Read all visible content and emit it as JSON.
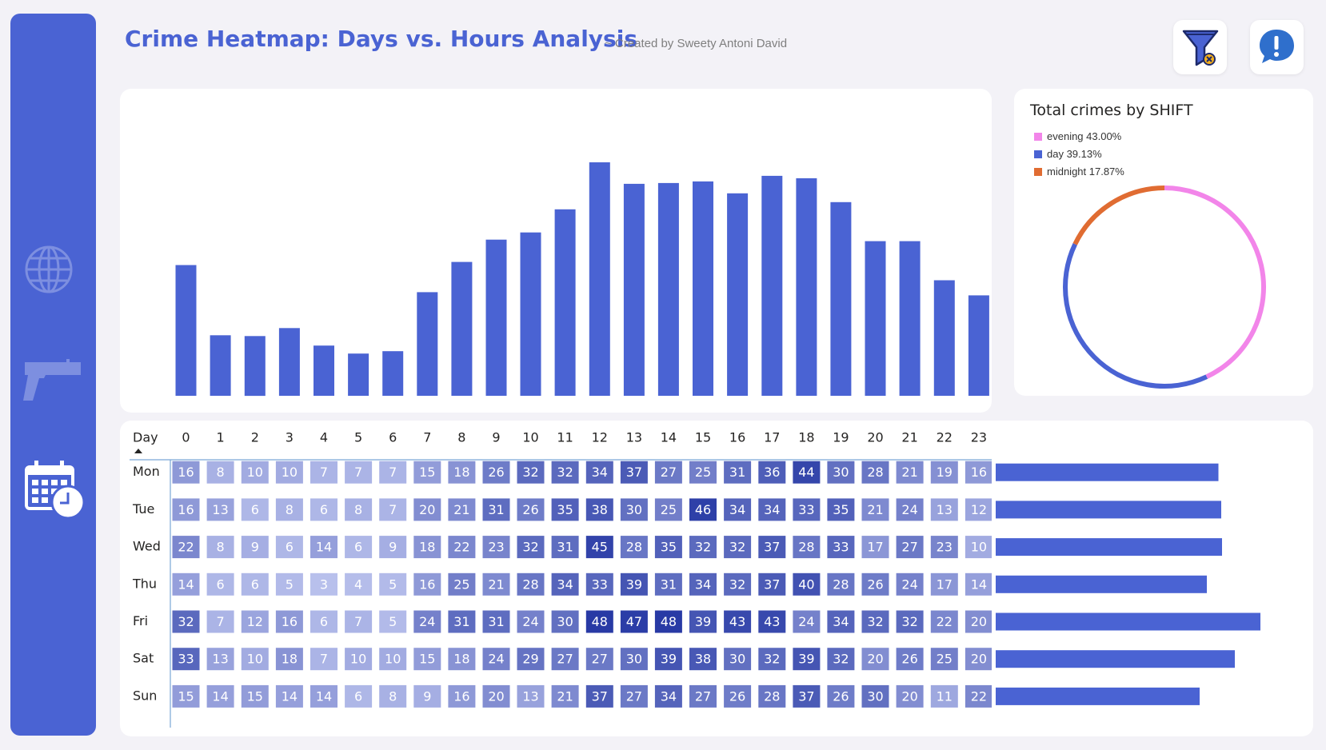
{
  "header": {
    "title": "Crime Heatmap: Days vs. Hours Analysis",
    "subtitle": "~ Created by Sweety Antoni David"
  },
  "toolbar": {
    "clear_filter_icon": "filter-clear-icon",
    "info_icon": "info-icon"
  },
  "sidebar": {
    "items": [
      {
        "icon": "globe-icon"
      },
      {
        "icon": "pistol-icon"
      },
      {
        "icon": "calendar-clock-icon"
      }
    ]
  },
  "colors": {
    "accent": "#4a63d3",
    "evening": "#f285e9",
    "day": "#4a63d3",
    "midnight": "#e06c32"
  },
  "hourly_chart": {
    "chart_data": {
      "type": "bar",
      "categories": [
        "0",
        "1",
        "2",
        "3",
        "4",
        "5",
        "6",
        "7",
        "8",
        "9",
        "10",
        "11",
        "12",
        "13",
        "14",
        "15",
        "16",
        "17",
        "18",
        "19",
        "20",
        "21",
        "22",
        "23"
      ],
      "values": [
        164,
        76,
        75,
        85,
        63,
        53,
        56,
        130,
        168,
        196,
        205,
        234,
        293,
        266,
        267,
        269,
        254,
        276,
        273,
        243,
        194,
        194,
        145,
        126
      ],
      "ylim": [
        0,
        300
      ]
    }
  },
  "shift_chart": {
    "title": "Total crimes by SHIFT",
    "chart_data": {
      "type": "pie",
      "labels": [
        "evening",
        "day",
        "midnight"
      ],
      "values": [
        43.0,
        39.13,
        17.87
      ],
      "legend_text": [
        "evening 43.00%",
        "day 39.13%",
        "midnight 17.87%"
      ],
      "legend_position": "top-left"
    }
  },
  "heatmap": {
    "corner_label": "Day",
    "chart_data": {
      "type": "heatmap",
      "columns": [
        "0",
        "1",
        "2",
        "3",
        "4",
        "5",
        "6",
        "7",
        "8",
        "9",
        "10",
        "11",
        "12",
        "13",
        "14",
        "15",
        "16",
        "17",
        "18",
        "19",
        "20",
        "21",
        "22",
        "23"
      ],
      "rows": [
        "Mon",
        "Tue",
        "Wed",
        "Thu",
        "Fri",
        "Sat",
        "Sun"
      ],
      "values": [
        [
          16,
          8,
          10,
          10,
          7,
          7,
          7,
          15,
          18,
          26,
          32,
          32,
          34,
          37,
          27,
          25,
          31,
          36,
          44,
          30,
          28,
          21,
          19,
          16
        ],
        [
          16,
          13,
          6,
          8,
          6,
          8,
          7,
          20,
          21,
          31,
          26,
          35,
          38,
          30,
          25,
          46,
          34,
          34,
          33,
          35,
          21,
          24,
          13,
          12
        ],
        [
          22,
          8,
          9,
          6,
          14,
          6,
          9,
          18,
          22,
          23,
          32,
          31,
          45,
          28,
          35,
          32,
          32,
          37,
          28,
          33,
          17,
          27,
          23,
          10
        ],
        [
          14,
          6,
          6,
          5,
          3,
          4,
          5,
          16,
          25,
          21,
          28,
          34,
          33,
          39,
          31,
          34,
          32,
          37,
          40,
          28,
          26,
          24,
          17,
          14
        ],
        [
          32,
          7,
          12,
          16,
          6,
          7,
          5,
          24,
          31,
          31,
          24,
          30,
          48,
          47,
          48,
          39,
          43,
          43,
          24,
          34,
          32,
          32,
          22,
          20
        ],
        [
          33,
          13,
          10,
          18,
          7,
          10,
          10,
          15,
          18,
          24,
          29,
          27,
          27,
          30,
          39,
          38,
          30,
          32,
          39,
          32,
          20,
          26,
          25,
          20
        ],
        [
          15,
          14,
          15,
          14,
          14,
          6,
          8,
          9,
          16,
          20,
          13,
          21,
          37,
          27,
          34,
          27,
          26,
          28,
          37,
          26,
          30,
          20,
          11,
          22
        ]
      ],
      "sort": "Day ascending"
    }
  },
  "day_totals_chart": {
    "chart_data": {
      "type": "bar",
      "orientation": "horizontal",
      "categories": [
        "Mon",
        "Tue",
        "Wed",
        "Thu",
        "Fri",
        "Sat",
        "Sun"
      ],
      "values": [
        557,
        564,
        566,
        528,
        662,
        598,
        510
      ],
      "xlim": [
        0,
        800
      ]
    }
  }
}
